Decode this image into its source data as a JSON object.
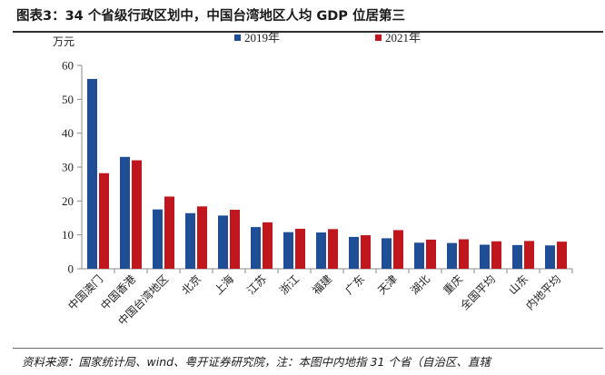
{
  "header": {
    "title": "图表3：34 个省级行政区划中，中国台湾地区人均 GDP 位居第三"
  },
  "footer": {
    "source": "资料来源：国家统计局、wind、粤开证券研究院，注：本图中内地指 31 个省（自治区、直辖"
  },
  "chart_data": {
    "type": "bar",
    "ylabel": "万元",
    "ylim": [
      0,
      60
    ],
    "yticks": [
      0,
      10,
      20,
      30,
      40,
      50,
      60
    ],
    "grid": false,
    "legend_position": "top-right",
    "categories": [
      "中国澳门",
      "中国香港",
      "中国台湾地区",
      "北京",
      "上海",
      "江苏",
      "浙江",
      "福建",
      "广东",
      "天津",
      "湖北",
      "重庆",
      "全国平均",
      "山东",
      "内地平均"
    ],
    "series": [
      {
        "name": "2019年",
        "color": "#1f4e96",
        "values": [
          56,
          33,
          17.5,
          16.4,
          15.7,
          12.3,
          10.8,
          10.7,
          9.4,
          9.0,
          7.7,
          7.6,
          7.1,
          7.0,
          6.9
        ]
      },
      {
        "name": "2021年",
        "color": "#c0161e",
        "values": [
          28.2,
          32.0,
          21.3,
          18.4,
          17.4,
          13.7,
          11.8,
          11.7,
          9.9,
          11.4,
          8.6,
          8.7,
          8.1,
          8.2,
          8.0
        ]
      }
    ]
  }
}
